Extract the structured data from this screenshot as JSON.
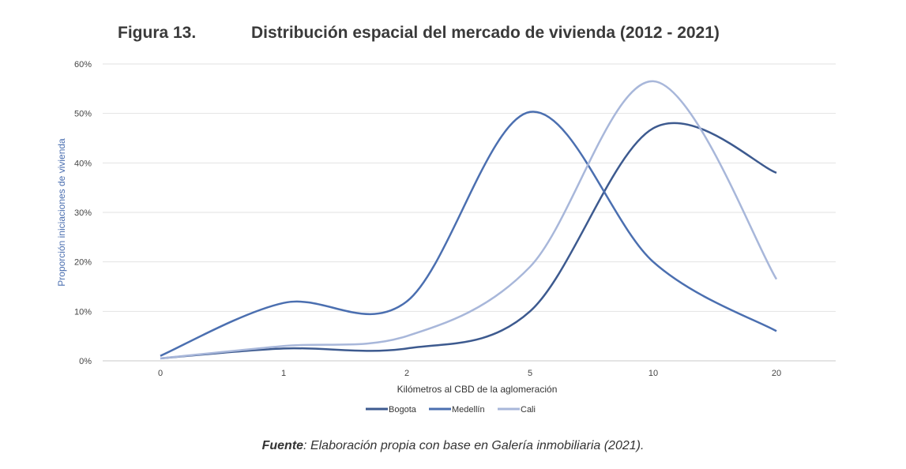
{
  "figure_label": "Figura 13.",
  "source": {
    "prefix": "Fuente",
    "text": ": Elaboración propia con base en Galería inmobiliaria (2021)."
  },
  "chart_data": {
    "type": "line",
    "title": "Distribución espacial del mercado de vivienda (2012 - 2021)",
    "xlabel": "Kilómetros al CBD de la aglomeración",
    "ylabel": "Proporción iniciaciones de vivienda",
    "categories": [
      "0",
      "1",
      "2",
      "5",
      "10",
      "20"
    ],
    "yticks": [
      "0%",
      "10%",
      "20%",
      "30%",
      "40%",
      "50%",
      "60%"
    ],
    "ylim": [
      0,
      60
    ],
    "grid": true,
    "smooth": true,
    "legend": "bottom",
    "series": [
      {
        "name": "Bogota",
        "color": "#3d5a8f",
        "values": [
          0.5,
          2.5,
          2.5,
          10,
          47,
          38
        ]
      },
      {
        "name": "Medellín",
        "color": "#4b6fb0",
        "values": [
          1,
          11.7,
          12,
          50.3,
          20,
          6
        ]
      },
      {
        "name": "Cali",
        "color": "#a8b7da",
        "values": [
          0.5,
          3,
          5,
          19,
          56.5,
          16.5
        ]
      }
    ]
  }
}
